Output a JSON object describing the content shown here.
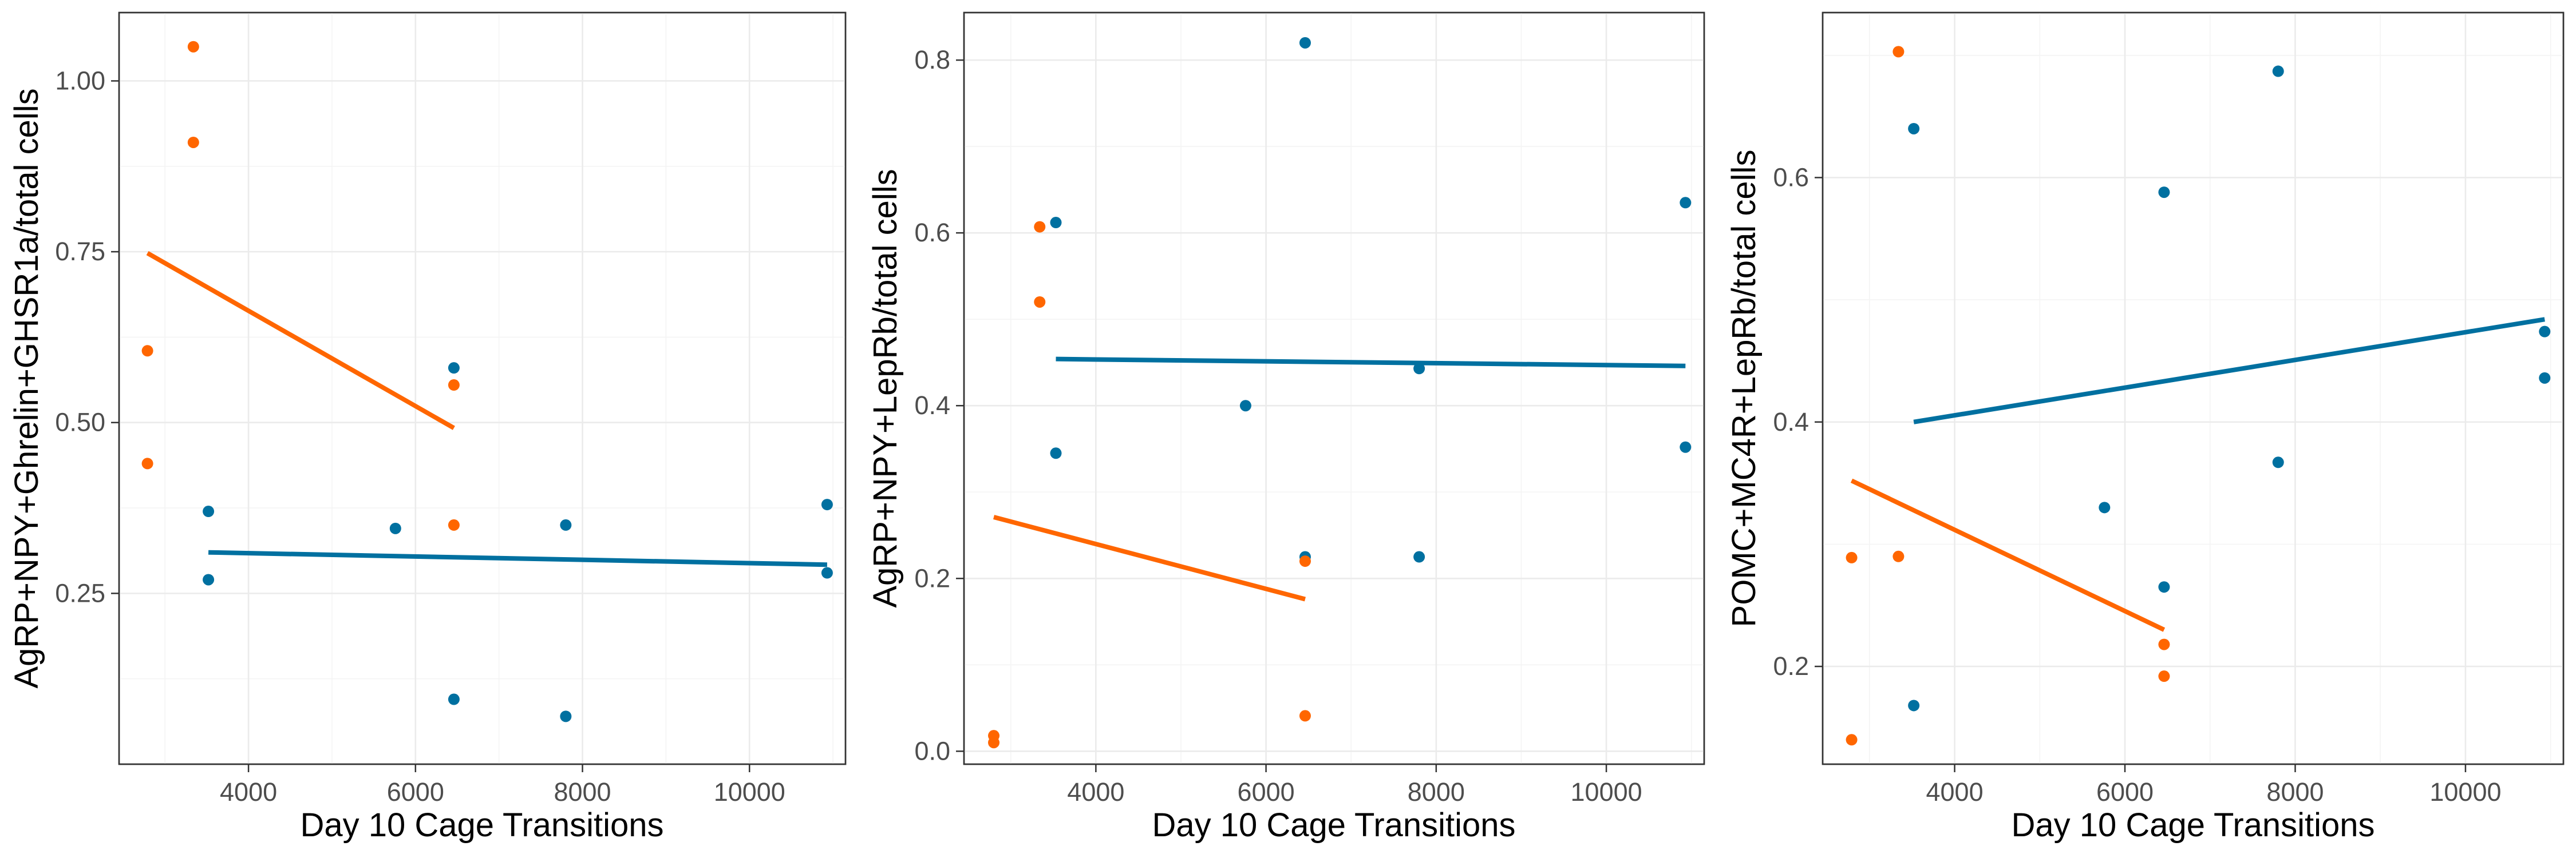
{
  "colors": {
    "series_1": "#0070A0",
    "series_2": "#FF6600"
  },
  "chart_data": [
    {
      "type": "scatter",
      "xlabel": "Day 10 Cage Transitions",
      "ylabel": "AgRP+NPY+Ghrelin+GHSR1a/total cells",
      "xlim": [
        2450,
        11150
      ],
      "ylim": [
        0.0,
        1.1
      ],
      "xticks": [
        4000,
        6000,
        8000,
        10000
      ],
      "yticks": [
        0.25,
        0.5,
        0.75,
        1.0
      ],
      "ytick_labels": [
        "0.25",
        "0.50",
        "0.75",
        "1.00"
      ],
      "grid": true,
      "series": [
        {
          "color": "#0070A0",
          "points": [
            [
              3520,
              0.37
            ],
            [
              3520,
              0.27
            ],
            [
              5760,
              0.345
            ],
            [
              6460,
              0.58
            ],
            [
              6460,
              0.095
            ],
            [
              7800,
              0.35
            ],
            [
              7800,
              0.07
            ],
            [
              10930,
              0.38
            ],
            [
              10930,
              0.28
            ]
          ],
          "fit": [
            [
              3520,
              0.31
            ],
            [
              10930,
              0.292
            ]
          ]
        },
        {
          "color": "#FF6600",
          "points": [
            [
              2790,
              0.605
            ],
            [
              2790,
              0.44
            ],
            [
              3340,
              1.05
            ],
            [
              3340,
              0.91
            ],
            [
              6460,
              0.555
            ],
            [
              6460,
              0.35
            ]
          ],
          "fit": [
            [
              2790,
              0.748
            ],
            [
              6460,
              0.492
            ]
          ]
        }
      ]
    },
    {
      "type": "scatter",
      "xlabel": "Day 10 Cage Transitions",
      "ylabel": "AgRP+NPY+LepRb/total cells",
      "xlim": [
        2450,
        11150
      ],
      "ylim": [
        -0.015,
        0.855
      ],
      "xticks": [
        4000,
        6000,
        8000,
        10000
      ],
      "yticks": [
        0.0,
        0.2,
        0.4,
        0.6,
        0.8
      ],
      "ytick_labels": [
        "0.0",
        "0.2",
        "0.4",
        "0.6",
        "0.8"
      ],
      "grid": true,
      "series": [
        {
          "color": "#0070A0",
          "points": [
            [
              3530,
              0.612
            ],
            [
              3530,
              0.345
            ],
            [
              5760,
              0.4
            ],
            [
              6460,
              0.82
            ],
            [
              6460,
              0.225
            ],
            [
              7800,
              0.443
            ],
            [
              7800,
              0.225
            ],
            [
              10930,
              0.635
            ],
            [
              10930,
              0.352
            ]
          ],
          "fit": [
            [
              3530,
              0.454
            ],
            [
              10930,
              0.446
            ]
          ]
        },
        {
          "color": "#FF6600",
          "points": [
            [
              2800,
              0.018
            ],
            [
              2800,
              0.01
            ],
            [
              3340,
              0.607
            ],
            [
              3340,
              0.52
            ],
            [
              6460,
              0.22
            ],
            [
              6460,
              0.041
            ]
          ],
          "fit": [
            [
              2800,
              0.271
            ],
            [
              6460,
              0.176
            ]
          ]
        }
      ]
    },
    {
      "type": "scatter",
      "xlabel": "Day 10 Cage Transitions",
      "ylabel": "POMC+MC4R+LepRb/total cells",
      "xlim": [
        2450,
        11150
      ],
      "ylim": [
        0.12,
        0.735
      ],
      "xticks": [
        4000,
        6000,
        8000,
        10000
      ],
      "yticks": [
        0.2,
        0.4,
        0.6
      ],
      "ytick_labels": [
        "0.2",
        "0.4",
        "0.6"
      ],
      "grid": true,
      "series": [
        {
          "color": "#0070A0",
          "points": [
            [
              3520,
              0.64
            ],
            [
              3520,
              0.168
            ],
            [
              5760,
              0.33
            ],
            [
              6460,
              0.588
            ],
            [
              6460,
              0.265
            ],
            [
              7800,
              0.687
            ],
            [
              7800,
              0.367
            ],
            [
              10930,
              0.474
            ],
            [
              10930,
              0.436
            ]
          ],
          "fit": [
            [
              3520,
              0.4
            ],
            [
              10930,
              0.484
            ]
          ]
        },
        {
          "color": "#FF6600",
          "points": [
            [
              2790,
              0.289
            ],
            [
              2790,
              0.14
            ],
            [
              3340,
              0.703
            ],
            [
              3340,
              0.29
            ],
            [
              6460,
              0.218
            ],
            [
              6460,
              0.192
            ]
          ],
          "fit": [
            [
              2790,
              0.352
            ],
            [
              6460,
              0.23
            ]
          ]
        }
      ]
    }
  ]
}
